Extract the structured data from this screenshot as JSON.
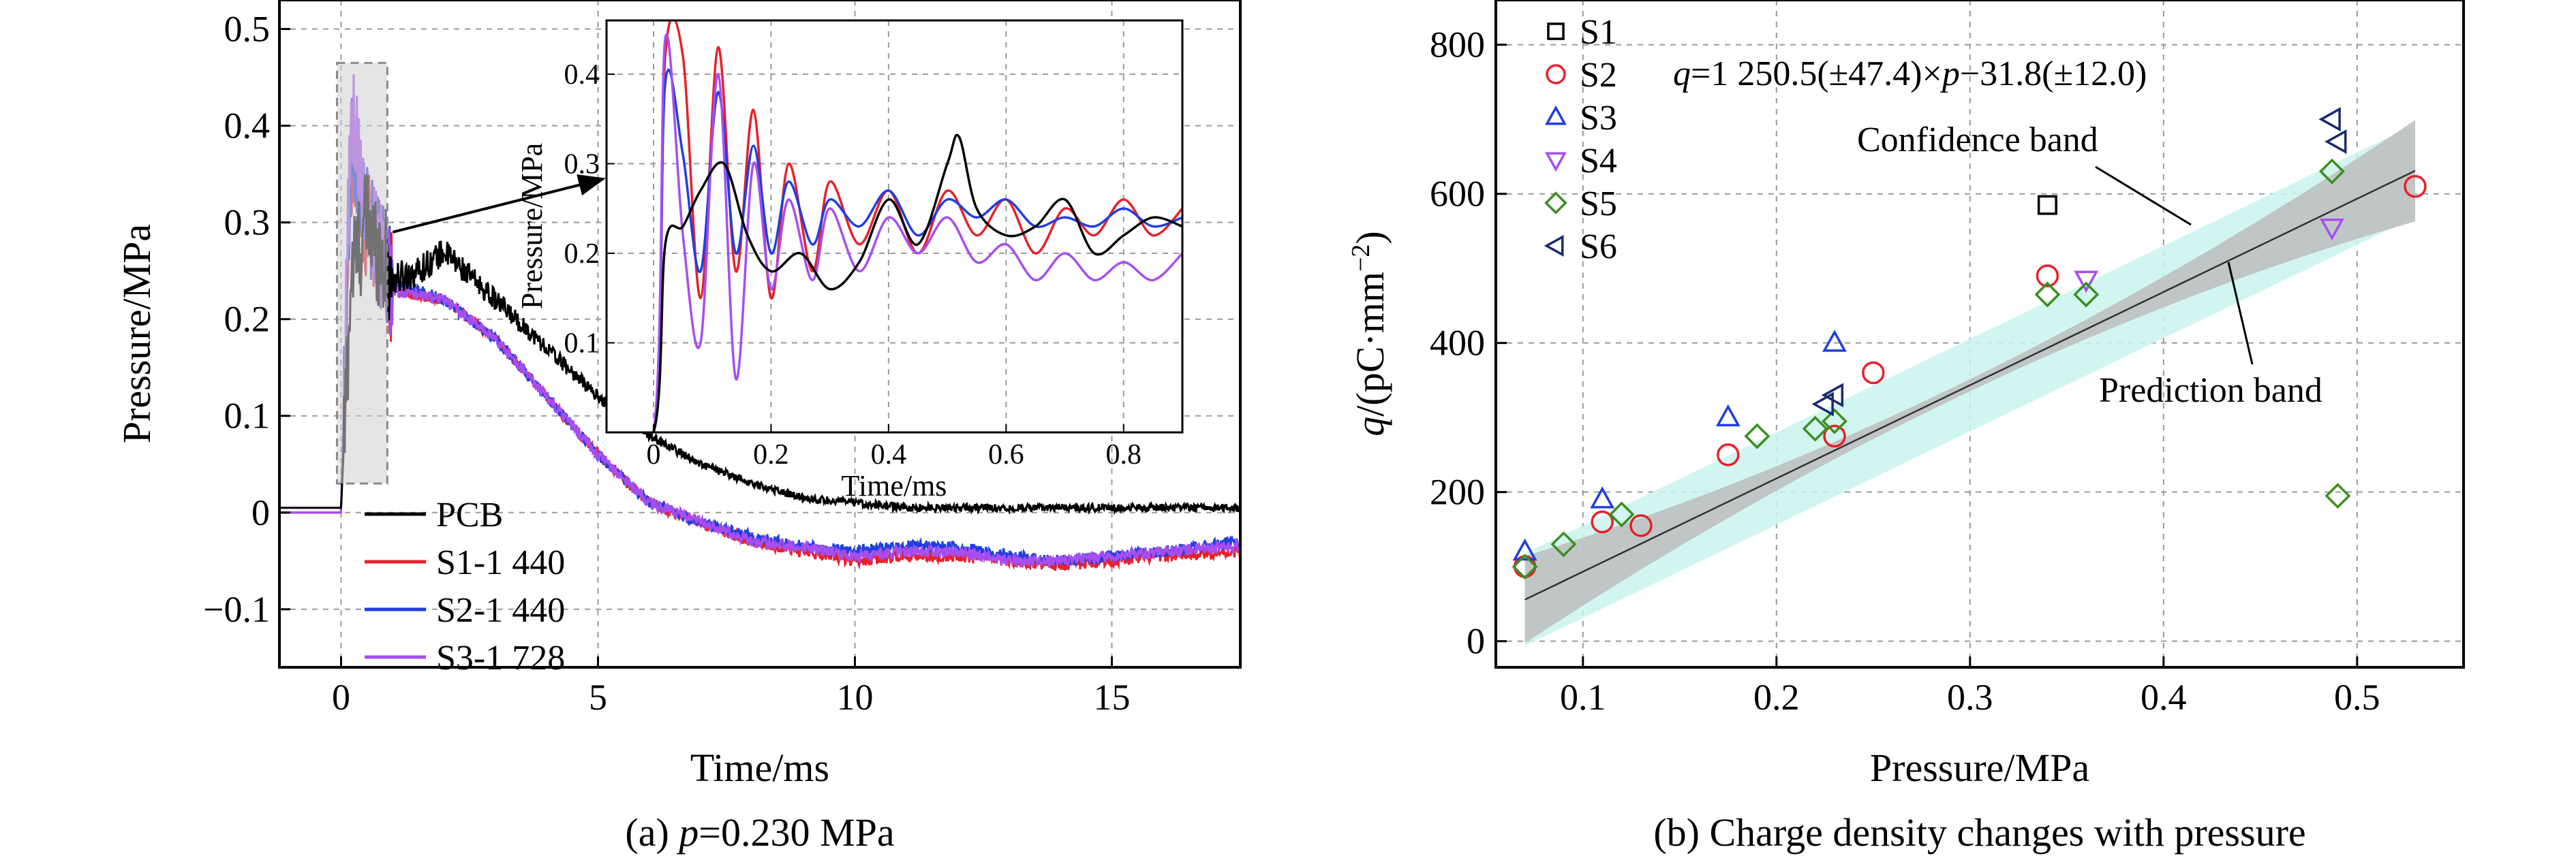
{
  "chart_data": [
    {
      "type": "line",
      "caption_prefix": "(a)",
      "caption_var": "p",
      "caption_rest": "=0.230 MPa",
      "xlabel": "Time/ms",
      "ylabel": "Pressure/MPa",
      "xlim": [
        -1.2,
        17.5
      ],
      "ylim": [
        -0.16,
        0.53
      ],
      "xticks": [
        0,
        5,
        10,
        15
      ],
      "yticks": [
        -0.1,
        0,
        0.1,
        0.2,
        0.3,
        0.4,
        0.5
      ],
      "ytick_labels": [
        "−0.1",
        "0",
        "0.1",
        "0.2",
        "0.3",
        "0.4",
        "0.5"
      ],
      "grid": true,
      "legend_position": "bottom-left",
      "series": [
        {
          "name": "PCB",
          "color": "#000000",
          "x": [
            -1.2,
            0.0,
            0.2,
            0.5,
            1.0,
            1.5,
            2.0,
            3.0,
            4.0,
            5.0,
            6.0,
            7.0,
            8.0,
            9.0,
            10.0,
            11.0,
            12.0,
            13.0,
            14.0,
            15.0,
            16.0,
            17.5
          ],
          "y": [
            0.005,
            0.005,
            0.25,
            0.3,
            0.24,
            0.25,
            0.27,
            0.22,
            0.17,
            0.12,
            0.08,
            0.05,
            0.03,
            0.015,
            0.01,
            0.005,
            0.005,
            0.005,
            0.005,
            0.005,
            0.005,
            0.005
          ]
        },
        {
          "name": "S1-1 440",
          "color": "#e8202a",
          "x": [
            -1.2,
            0.0,
            0.2,
            0.5,
            1.0,
            2.0,
            3.0,
            4.0,
            5.0,
            6.0,
            7.0,
            8.0,
            9.0,
            10.0,
            11.0,
            12.0,
            13.0,
            14.0,
            15.0,
            16.0,
            17.5
          ],
          "y": [
            0.0,
            0.0,
            0.35,
            0.3,
            0.23,
            0.22,
            0.18,
            0.12,
            0.06,
            0.01,
            -0.01,
            -0.03,
            -0.04,
            -0.05,
            -0.045,
            -0.045,
            -0.05,
            -0.055,
            -0.05,
            -0.045,
            -0.04
          ]
        },
        {
          "name": "S2-1 440",
          "color": "#1f3fe0",
          "x": [
            -1.2,
            0.0,
            0.2,
            0.5,
            1.0,
            2.0,
            3.0,
            4.0,
            5.0,
            6.0,
            7.0,
            8.0,
            9.0,
            10.0,
            11.0,
            12.0,
            13.0,
            14.0,
            15.0,
            16.0,
            17.5
          ],
          "y": [
            0.0,
            0.0,
            0.38,
            0.3,
            0.24,
            0.22,
            0.18,
            0.12,
            0.06,
            0.01,
            -0.01,
            -0.025,
            -0.035,
            -0.04,
            -0.035,
            -0.035,
            -0.045,
            -0.05,
            -0.045,
            -0.04,
            -0.03
          ]
        },
        {
          "name": "S3-1 728",
          "color": "#a64ef0",
          "x": [
            -1.2,
            0.0,
            0.2,
            0.5,
            1.0,
            2.0,
            3.0,
            4.0,
            5.0,
            6.0,
            7.0,
            8.0,
            9.0,
            10.0,
            11.0,
            12.0,
            13.0,
            14.0,
            15.0,
            16.0,
            17.5
          ],
          "y": [
            0.0,
            0.0,
            0.43,
            0.3,
            0.23,
            0.22,
            0.18,
            0.12,
            0.06,
            0.01,
            -0.01,
            -0.03,
            -0.035,
            -0.045,
            -0.04,
            -0.04,
            -0.05,
            -0.05,
            -0.045,
            -0.04,
            -0.035
          ]
        }
      ],
      "inset": {
        "xlabel": "Time/ms",
        "ylabel": "Pressure/MPa",
        "xlim": [
          -0.08,
          0.9
        ],
        "ylim": [
          0.0,
          0.46
        ],
        "xticks": [
          0,
          0.2,
          0.4,
          0.6,
          0.8
        ],
        "xtick_labels": [
          "0",
          "0.2",
          "0.4",
          "0.6",
          "0.8"
        ],
        "yticks": [
          0.1,
          0.2,
          0.3,
          0.4
        ],
        "ytick_labels": [
          "0.1",
          "0.2",
          "0.3",
          "0.4"
        ],
        "series": [
          {
            "name": "PCB",
            "color": "#000000",
            "x": [
              -0.08,
              0.0,
              0.02,
              0.05,
              0.08,
              0.12,
              0.16,
              0.2,
              0.25,
              0.3,
              0.35,
              0.4,
              0.45,
              0.5,
              0.52,
              0.55,
              0.6,
              0.65,
              0.7,
              0.75,
              0.8,
              0.85,
              0.9
            ],
            "y": [
              0.0,
              0.0,
              0.21,
              0.23,
              0.27,
              0.3,
              0.22,
              0.18,
              0.2,
              0.16,
              0.19,
              0.26,
              0.21,
              0.3,
              0.33,
              0.25,
              0.22,
              0.23,
              0.26,
              0.2,
              0.22,
              0.24,
              0.23
            ]
          },
          {
            "name": "S1-1 440",
            "color": "#e8202a",
            "x": [
              -0.08,
              0.0,
              0.02,
              0.05,
              0.08,
              0.11,
              0.14,
              0.17,
              0.2,
              0.23,
              0.27,
              0.3,
              0.35,
              0.4,
              0.45,
              0.5,
              0.55,
              0.6,
              0.65,
              0.7,
              0.75,
              0.8,
              0.85,
              0.9
            ],
            "y": [
              0.0,
              0.0,
              0.42,
              0.42,
              0.15,
              0.43,
              0.18,
              0.36,
              0.15,
              0.3,
              0.18,
              0.28,
              0.21,
              0.27,
              0.2,
              0.27,
              0.22,
              0.26,
              0.2,
              0.25,
              0.22,
              0.26,
              0.22,
              0.25
            ]
          },
          {
            "name": "S2-1 440",
            "color": "#1f3fe0",
            "x": [
              -0.08,
              0.0,
              0.02,
              0.05,
              0.08,
              0.11,
              0.14,
              0.17,
              0.2,
              0.23,
              0.27,
              0.3,
              0.35,
              0.4,
              0.45,
              0.5,
              0.55,
              0.6,
              0.65,
              0.7,
              0.75,
              0.8,
              0.85,
              0.9
            ],
            "y": [
              0.0,
              0.0,
              0.39,
              0.31,
              0.18,
              0.38,
              0.2,
              0.32,
              0.2,
              0.28,
              0.21,
              0.26,
              0.23,
              0.27,
              0.22,
              0.26,
              0.24,
              0.26,
              0.23,
              0.24,
              0.23,
              0.25,
              0.23,
              0.24
            ]
          },
          {
            "name": "S3-1 728",
            "color": "#a64ef0",
            "x": [
              -0.08,
              0.0,
              0.02,
              0.05,
              0.08,
              0.11,
              0.14,
              0.17,
              0.2,
              0.23,
              0.27,
              0.3,
              0.35,
              0.4,
              0.45,
              0.5,
              0.55,
              0.6,
              0.65,
              0.7,
              0.75,
              0.8,
              0.85,
              0.9
            ],
            "y": [
              0.0,
              0.0,
              0.44,
              0.22,
              0.1,
              0.4,
              0.06,
              0.3,
              0.16,
              0.26,
              0.17,
              0.25,
              0.18,
              0.24,
              0.2,
              0.24,
              0.19,
              0.21,
              0.17,
              0.2,
              0.17,
              0.19,
              0.17,
              0.2
            ]
          }
        ]
      }
    },
    {
      "type": "scatter",
      "caption": "(b) Charge density changes with pressure",
      "xlabel": "Pressure/MPa",
      "ylabel_var": "q",
      "ylabel_rest": "/(pC·mm",
      "ylabel_sup": "−2",
      "ylabel_end": ")",
      "xlim": [
        0.055,
        0.555
      ],
      "ylim": [
        -35,
        860
      ],
      "xticks": [
        0.1,
        0.2,
        0.3,
        0.4,
        0.5
      ],
      "xtick_labels": [
        "0.1",
        "0.2",
        "0.3",
        "0.4",
        "0.5"
      ],
      "yticks": [
        0,
        200,
        400,
        600,
        800
      ],
      "ytick_labels": [
        "0",
        "200",
        "400",
        "600",
        "800"
      ],
      "grid": true,
      "legend_position": "top-left",
      "equation_var": "q",
      "equation_mid": "=1 250.5(±47.4)×",
      "equation_var2": "p",
      "equation_end": "−31.8(±12.0)",
      "fit": {
        "slope": 1250.5,
        "intercept": -31.8,
        "xrange": [
          0.07,
          0.53
        ]
      },
      "confidence_band_label": "Confidence band",
      "prediction_band_label": "Prediction band",
      "series": [
        {
          "name": "S1",
          "marker": "square",
          "color": "#000000",
          "x": [
            0.34
          ],
          "y": [
            585
          ]
        },
        {
          "name": "S2",
          "marker": "circle",
          "color": "#e8202a",
          "x": [
            0.07,
            0.11,
            0.13,
            0.175,
            0.23,
            0.25,
            0.34,
            0.53
          ],
          "y": [
            100,
            160,
            155,
            250,
            275,
            360,
            490,
            610
          ]
        },
        {
          "name": "S3",
          "marker": "triangle-up",
          "color": "#1f3fe0",
          "x": [
            0.07,
            0.11,
            0.175,
            0.23
          ],
          "y": [
            120,
            190,
            300,
            400
          ]
        },
        {
          "name": "S4",
          "marker": "triangle-down",
          "color": "#a64ef0",
          "x": [
            0.36,
            0.487
          ],
          "y": [
            485,
            555
          ]
        },
        {
          "name": "S5",
          "marker": "diamond",
          "color": "#3a8f1f",
          "x": [
            0.07,
            0.09,
            0.12,
            0.19,
            0.22,
            0.23,
            0.34,
            0.36,
            0.487,
            0.49
          ],
          "y": [
            100,
            130,
            170,
            275,
            285,
            295,
            465,
            465,
            630,
            195
          ]
        },
        {
          "name": "S6",
          "marker": "triangle-left",
          "color": "#1a2a6e",
          "x": [
            0.225,
            0.23,
            0.487,
            0.49
          ],
          "y": [
            318,
            330,
            700,
            670
          ]
        }
      ]
    }
  ]
}
